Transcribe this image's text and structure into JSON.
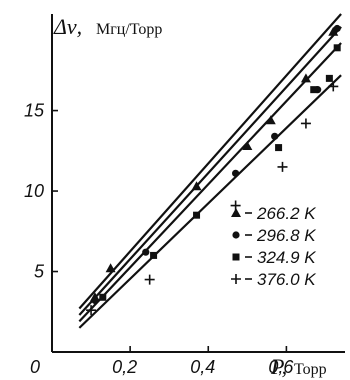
{
  "chart_data": {
    "type": "scatter",
    "title": "",
    "ylabel_symbol": "Δν,",
    "ylabel_units": "Мгц/Торр",
    "xlabel_symbol": "P,",
    "xlabel_units": "Торр",
    "xlim": [
      0,
      0.75
    ],
    "ylim": [
      0,
      21
    ],
    "x_ticks": [
      {
        "value": 0,
        "label": "0"
      },
      {
        "value": 0.2,
        "label": "0,2"
      },
      {
        "value": 0.4,
        "label": "0,4"
      },
      {
        "value": 0.6,
        "label": "0,6"
      }
    ],
    "y_ticks": [
      {
        "value": 5,
        "label": "5"
      },
      {
        "value": 10,
        "label": "10"
      },
      {
        "value": 15,
        "label": "15"
      }
    ],
    "grid": false,
    "legend_position": "right",
    "series": [
      {
        "name": "266.2 K",
        "marker": "triangle",
        "fit": [
          [
            0.07,
            2.7
          ],
          [
            0.74,
            21.0
          ]
        ],
        "points": [
          {
            "x": 0.11,
            "y": 3.4
          },
          {
            "x": 0.15,
            "y": 5.2
          },
          {
            "x": 0.37,
            "y": 10.3
          },
          {
            "x": 0.5,
            "y": 12.8
          },
          {
            "x": 0.56,
            "y": 14.4
          },
          {
            "x": 0.65,
            "y": 17.0
          },
          {
            "x": 0.72,
            "y": 19.9
          }
        ]
      },
      {
        "name": "296.8 K",
        "marker": "circle",
        "fit": [
          [
            0.07,
            2.3
          ],
          [
            0.74,
            20.2
          ]
        ],
        "points": [
          {
            "x": 0.11,
            "y": 3.2
          },
          {
            "x": 0.24,
            "y": 6.2
          },
          {
            "x": 0.47,
            "y": 11.1
          },
          {
            "x": 0.57,
            "y": 13.4
          },
          {
            "x": 0.68,
            "y": 16.3
          },
          {
            "x": 0.73,
            "y": 20.1
          }
        ]
      },
      {
        "name": "324.9 K",
        "marker": "square",
        "fit": [
          [
            0.07,
            1.9
          ],
          [
            0.74,
            19.2
          ]
        ],
        "points": [
          {
            "x": 0.13,
            "y": 3.4
          },
          {
            "x": 0.26,
            "y": 6.0
          },
          {
            "x": 0.37,
            "y": 8.5
          },
          {
            "x": 0.58,
            "y": 12.7
          },
          {
            "x": 0.67,
            "y": 16.3
          },
          {
            "x": 0.71,
            "y": 17.0
          },
          {
            "x": 0.73,
            "y": 18.9
          }
        ]
      },
      {
        "name": "376.0 K",
        "marker": "plus",
        "fit": [
          [
            0.07,
            1.5
          ],
          [
            0.74,
            17.2
          ]
        ],
        "points": [
          {
            "x": 0.1,
            "y": 2.6
          },
          {
            "x": 0.25,
            "y": 4.5
          },
          {
            "x": 0.47,
            "y": 9.1
          },
          {
            "x": 0.59,
            "y": 11.5
          },
          {
            "x": 0.65,
            "y": 14.2
          },
          {
            "x": 0.72,
            "y": 16.5
          }
        ]
      }
    ]
  }
}
